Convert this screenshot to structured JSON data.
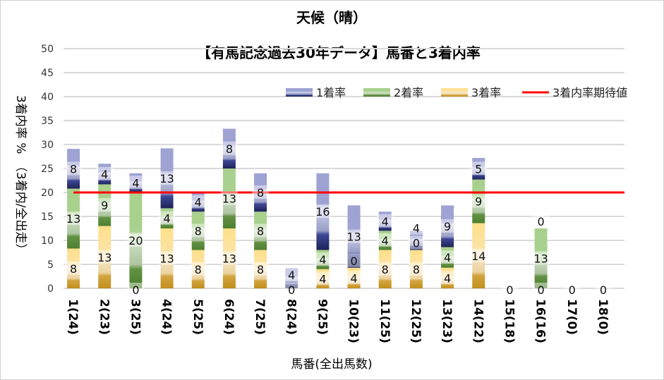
{
  "chart_data": {
    "type": "bar",
    "stacked": true,
    "title": "天候（晴）",
    "subtitle": "【有馬記念過去30年データ】馬番と3着内率",
    "xlabel": "馬番(全出馬数)",
    "ylabel": "3着内率 %　（3着内/全出走）",
    "ylim": [
      0,
      50
    ],
    "yticks": [
      0,
      5,
      10,
      15,
      20,
      25,
      30,
      35,
      40,
      45,
      50
    ],
    "grid": true,
    "legend_position": "top-right",
    "categories": [
      "1(24)",
      "2(23)",
      "3(25)",
      "4(24)",
      "5(25)",
      "6(24)",
      "7(25)",
      "8(24)",
      "9(25)",
      "10(23)",
      "11(25)",
      "12(25)",
      "13(23)",
      "14(22)",
      "15(18)",
      "16(16)",
      "17(0)",
      "18(0)"
    ],
    "series": [
      {
        "name": "3着率",
        "color": "#D4A537",
        "values": [
          8.3,
          13.0,
          0,
          12.5,
          8,
          12.5,
          8,
          0,
          4,
          4.3,
          8,
          8,
          4.3,
          13.6,
          0,
          0,
          0,
          0
        ],
        "labels": [
          "8",
          "13",
          "0",
          "13",
          "8",
          "13",
          "8",
          "0",
          "4",
          "4",
          "8",
          "8",
          "4",
          "14",
          "0",
          "0",
          "0",
          "0"
        ]
      },
      {
        "name": "2着率",
        "color": "#70AD47",
        "values": [
          12.5,
          8.7,
          20,
          4.2,
          8,
          12.5,
          8,
          0,
          4,
          0,
          4,
          0,
          4.3,
          9.1,
          0,
          12.5,
          0,
          0
        ],
        "labels": [
          "13",
          "9",
          "20",
          "4",
          "8",
          "13",
          "8",
          "",
          "4",
          "0",
          "4",
          "0",
          "4",
          "9",
          "",
          "13",
          "",
          ""
        ]
      },
      {
        "name": "1着率",
        "color": "#4A55A2",
        "values": [
          8.3,
          4.3,
          4,
          12.5,
          4,
          8.3,
          8,
          4.2,
          16,
          13.0,
          4,
          4,
          8.7,
          4.5,
          0,
          0,
          0,
          0
        ],
        "labels": [
          "8",
          "4",
          "4",
          "13",
          "4",
          "8",
          "8",
          "4",
          "16",
          "13",
          "4",
          "4",
          "9",
          "5",
          "",
          "0",
          "",
          ""
        ]
      }
    ],
    "reference_line": {
      "name": "3着内率期待値",
      "value": 20,
      "color": "#FF0000"
    }
  }
}
